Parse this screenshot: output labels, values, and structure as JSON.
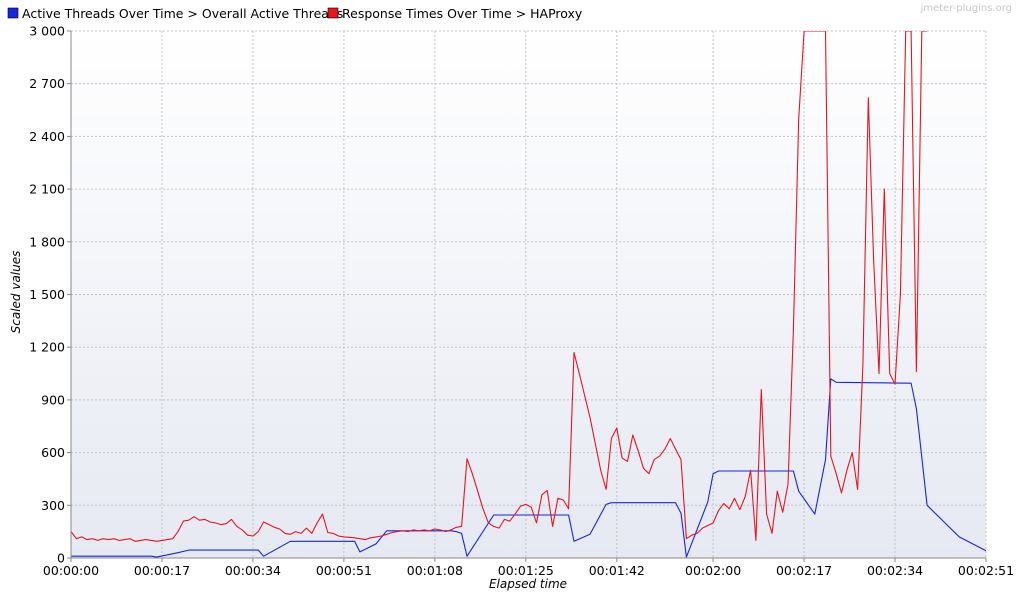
{
  "watermark": "jmeter-plugins.org",
  "colors": {
    "threads": "#1426e0",
    "response": "#e8141e",
    "grid": "#c4c4c4",
    "plot_top": "#ffffff",
    "plot_bottom": "#e6e9f2"
  },
  "chart_data": {
    "type": "line",
    "title": "",
    "xlabel": "Elapsed time",
    "ylabel": "Scaled values",
    "xlim": [
      0,
      171
    ],
    "ylim": [
      0,
      3000
    ],
    "grid": true,
    "legend_position": "top-left",
    "x_ticks": [
      {
        "value": 0,
        "label": "00:00:00"
      },
      {
        "value": 17,
        "label": "00:00:17"
      },
      {
        "value": 34,
        "label": "00:00:34"
      },
      {
        "value": 51,
        "label": "00:00:51"
      },
      {
        "value": 68,
        "label": "00:01:08"
      },
      {
        "value": 85,
        "label": "00:01:25"
      },
      {
        "value": 102,
        "label": "00:01:42"
      },
      {
        "value": 120,
        "label": "00:02:00"
      },
      {
        "value": 137,
        "label": "00:02:17"
      },
      {
        "value": 154,
        "label": "00:02:34"
      },
      {
        "value": 171,
        "label": "00:02:51"
      }
    ],
    "y_ticks": [
      {
        "value": 0,
        "label": "0"
      },
      {
        "value": 300,
        "label": "300"
      },
      {
        "value": 600,
        "label": "600"
      },
      {
        "value": 900,
        "label": "900"
      },
      {
        "value": 1200,
        "label": "1 200"
      },
      {
        "value": 1500,
        "label": "1 500"
      },
      {
        "value": 1800,
        "label": "1 800"
      },
      {
        "value": 2100,
        "label": "2 100"
      },
      {
        "value": 2400,
        "label": "2 400"
      },
      {
        "value": 2700,
        "label": "2 700"
      },
      {
        "value": 3000,
        "label": "3 000"
      }
    ],
    "series": [
      {
        "name": "Active Threads Over Time > Overall Active Threads",
        "color": "#1426e0",
        "points": [
          [
            0,
            10
          ],
          [
            15,
            10
          ],
          [
            16,
            5
          ],
          [
            20,
            30
          ],
          [
            22,
            45
          ],
          [
            35,
            45
          ],
          [
            36,
            10
          ],
          [
            41,
            95
          ],
          [
            53,
            95
          ],
          [
            54,
            35
          ],
          [
            57,
            80
          ],
          [
            59,
            155
          ],
          [
            71,
            155
          ],
          [
            72,
            150
          ],
          [
            73,
            140
          ],
          [
            74,
            10
          ],
          [
            79,
            245
          ],
          [
            93,
            245
          ],
          [
            94,
            95
          ],
          [
            97,
            135
          ],
          [
            100,
            305
          ],
          [
            101,
            315
          ],
          [
            113,
            315
          ],
          [
            114,
            255
          ],
          [
            115,
            5
          ],
          [
            119,
            320
          ],
          [
            120,
            480
          ],
          [
            121,
            495
          ],
          [
            135,
            495
          ],
          [
            136,
            380
          ],
          [
            139,
            250
          ],
          [
            141,
            560
          ],
          [
            142,
            1020
          ],
          [
            143,
            1000
          ],
          [
            157,
            995
          ],
          [
            158,
            850
          ],
          [
            160,
            300
          ],
          [
            166,
            120
          ],
          [
            172,
            25
          ]
        ]
      },
      {
        "name": "Response Times Over Time > HAProxy",
        "color": "#e8141e",
        "points": [
          [
            0,
            150
          ],
          [
            1,
            110
          ],
          [
            2,
            120
          ],
          [
            3,
            105
          ],
          [
            4,
            110
          ],
          [
            5,
            100
          ],
          [
            6,
            110
          ],
          [
            7,
            105
          ],
          [
            8,
            110
          ],
          [
            9,
            100
          ],
          [
            10,
            105
          ],
          [
            11,
            110
          ],
          [
            12,
            95
          ],
          [
            13,
            100
          ],
          [
            14,
            105
          ],
          [
            15,
            100
          ],
          [
            16,
            95
          ],
          [
            17,
            100
          ],
          [
            18,
            105
          ],
          [
            19,
            110
          ],
          [
            20,
            150
          ],
          [
            21,
            210
          ],
          [
            22,
            215
          ],
          [
            23,
            235
          ],
          [
            24,
            215
          ],
          [
            25,
            220
          ],
          [
            26,
            205
          ],
          [
            27,
            200
          ],
          [
            28,
            190
          ],
          [
            29,
            195
          ],
          [
            30,
            220
          ],
          [
            31,
            180
          ],
          [
            32,
            160
          ],
          [
            33,
            130
          ],
          [
            34,
            125
          ],
          [
            35,
            150
          ],
          [
            36,
            205
          ],
          [
            37,
            190
          ],
          [
            38,
            175
          ],
          [
            39,
            165
          ],
          [
            40,
            140
          ],
          [
            41,
            135
          ],
          [
            42,
            150
          ],
          [
            43,
            140
          ],
          [
            44,
            170
          ],
          [
            45,
            140
          ],
          [
            46,
            200
          ],
          [
            47,
            250
          ],
          [
            48,
            145
          ],
          [
            49,
            140
          ],
          [
            50,
            125
          ],
          [
            51,
            120
          ],
          [
            52,
            118
          ],
          [
            53,
            115
          ],
          [
            54,
            110
          ],
          [
            55,
            105
          ],
          [
            56,
            115
          ],
          [
            57,
            120
          ],
          [
            58,
            125
          ],
          [
            59,
            135
          ],
          [
            60,
            145
          ],
          [
            61,
            150
          ],
          [
            62,
            155
          ],
          [
            63,
            150
          ],
          [
            64,
            160
          ],
          [
            65,
            155
          ],
          [
            66,
            160
          ],
          [
            67,
            155
          ],
          [
            68,
            165
          ],
          [
            69,
            160
          ],
          [
            70,
            150
          ],
          [
            71,
            160
          ],
          [
            72,
            175
          ],
          [
            73,
            180
          ],
          [
            74,
            565
          ],
          [
            75,
            480
          ],
          [
            76,
            380
          ],
          [
            77,
            280
          ],
          [
            78,
            200
          ],
          [
            79,
            180
          ],
          [
            80,
            170
          ],
          [
            81,
            220
          ],
          [
            82,
            210
          ],
          [
            83,
            250
          ],
          [
            84,
            295
          ],
          [
            85,
            305
          ],
          [
            86,
            290
          ],
          [
            87,
            200
          ],
          [
            88,
            360
          ],
          [
            89,
            385
          ],
          [
            90,
            180
          ],
          [
            91,
            340
          ],
          [
            92,
            330
          ],
          [
            93,
            280
          ],
          [
            94,
            1170
          ],
          [
            95,
            1050
          ],
          [
            97,
            800
          ],
          [
            99,
            500
          ],
          [
            100,
            390
          ],
          [
            101,
            680
          ],
          [
            102,
            740
          ],
          [
            103,
            570
          ],
          [
            104,
            550
          ],
          [
            105,
            700
          ],
          [
            106,
            610
          ],
          [
            107,
            510
          ],
          [
            108,
            480
          ],
          [
            109,
            560
          ],
          [
            110,
            580
          ],
          [
            111,
            620
          ],
          [
            112,
            680
          ],
          [
            113,
            620
          ],
          [
            114,
            560
          ],
          [
            115,
            110
          ],
          [
            116,
            130
          ],
          [
            117,
            140
          ],
          [
            118,
            170
          ],
          [
            119,
            185
          ],
          [
            120,
            200
          ],
          [
            121,
            270
          ],
          [
            122,
            310
          ],
          [
            123,
            280
          ],
          [
            124,
            340
          ],
          [
            125,
            275
          ],
          [
            126,
            350
          ],
          [
            127,
            500
          ],
          [
            128,
            100
          ],
          [
            129,
            960
          ],
          [
            130,
            250
          ],
          [
            131,
            140
          ],
          [
            132,
            380
          ],
          [
            133,
            260
          ],
          [
            134,
            420
          ],
          [
            135,
            1300
          ],
          [
            136,
            2500
          ],
          [
            137,
            3000
          ],
          [
            138,
            3000
          ],
          [
            139,
            3000
          ],
          [
            140,
            3000
          ],
          [
            141,
            3000
          ],
          [
            142,
            580
          ],
          [
            143,
            480
          ],
          [
            144,
            370
          ],
          [
            145,
            500
          ],
          [
            146,
            600
          ],
          [
            147,
            390
          ],
          [
            148,
            1100
          ],
          [
            149,
            2620
          ],
          [
            150,
            1700
          ],
          [
            151,
            1050
          ],
          [
            152,
            2100
          ],
          [
            153,
            1050
          ],
          [
            154,
            990
          ],
          [
            155,
            1500
          ],
          [
            156,
            3000
          ],
          [
            157,
            3000
          ],
          [
            158,
            1060
          ],
          [
            159,
            3000
          ],
          [
            160,
            3000
          ]
        ]
      }
    ]
  }
}
